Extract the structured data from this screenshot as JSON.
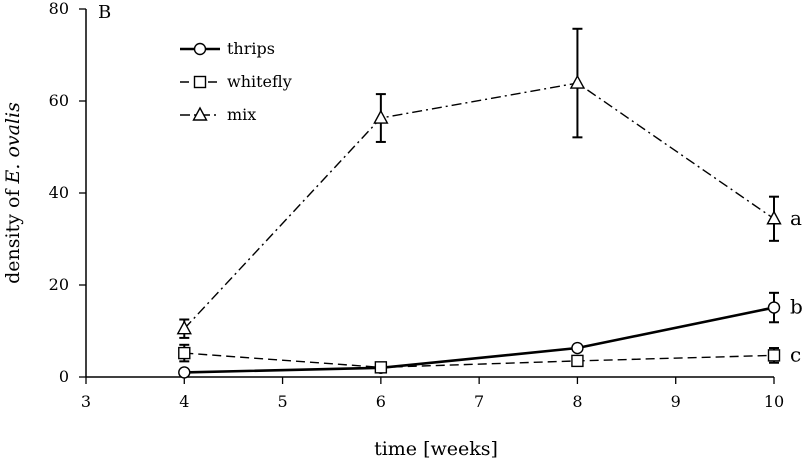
{
  "chart_data": {
    "type": "line",
    "panel_label": "B",
    "xlabel": "time [weeks]",
    "ylabel_prefix": "density of ",
    "ylabel_species": "E. ovalis",
    "xlim": [
      3,
      10
    ],
    "ylim": [
      0,
      80
    ],
    "x_ticks": [
      3,
      4,
      5,
      6,
      7,
      8,
      9,
      10
    ],
    "y_ticks": [
      0,
      20,
      40,
      60,
      80
    ],
    "grid": false,
    "legend_position": "top-left",
    "series": [
      {
        "name": "thrips",
        "marker": "circle",
        "line_style": "solid",
        "x": [
          4,
          6,
          8,
          10
        ],
        "y": [
          1,
          2,
          6.3,
          15.1
        ],
        "err": [
          0,
          0,
          0,
          3.2
        ],
        "group_letter": "b"
      },
      {
        "name": "whitefly",
        "marker": "square",
        "line_style": "dashed",
        "x": [
          4,
          6,
          8,
          10
        ],
        "y": [
          5.2,
          2.1,
          3.5,
          4.7
        ],
        "err": [
          1.8,
          0,
          0,
          1.6
        ],
        "group_letter": "c"
      },
      {
        "name": "mix",
        "marker": "triangle",
        "line_style": "dash-dot",
        "x": [
          4,
          6,
          8,
          10
        ],
        "y": [
          10.5,
          56.3,
          63.9,
          34.4
        ],
        "err": [
          2,
          5.2,
          11.8,
          4.8
        ],
        "group_letter": "a"
      }
    ]
  }
}
